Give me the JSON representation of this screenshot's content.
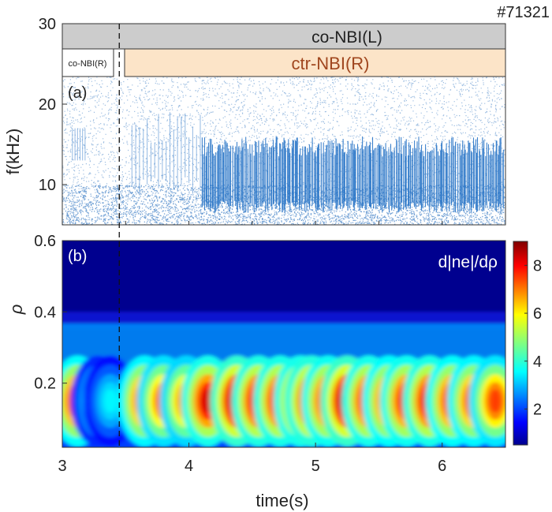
{
  "shot_label": "#71321",
  "chart_data": [
    {
      "type": "spectrogram",
      "panel_label": "(a)",
      "ylabel": "f(kHz)",
      "xlim": [
        3,
        6.5
      ],
      "ylim": [
        5,
        30
      ],
      "yticks": [
        "10",
        "20",
        "30"
      ],
      "grid": false,
      "legend": "none",
      "heating_bars": [
        {
          "label": "co-NBI(L)",
          "t_start": 3.0,
          "t_end": 6.5,
          "color": "#cccccc"
        },
        {
          "label": "co-NBI(R)",
          "t_start": 3.0,
          "t_end": 3.4,
          "color": "#ffffff"
        },
        {
          "label": "ctr-NBI(R)",
          "t_start": 3.5,
          "t_end": 6.5,
          "color": "#fce4c8",
          "text_color": "#a0461e"
        }
      ],
      "marker_time": 3.45,
      "mode_band_khz": [
        8,
        16
      ],
      "mode_onset_time": 4.1
    },
    {
      "type": "heatmap",
      "panel_label": "(b)",
      "quantity_label": "d|ne|/dρ",
      "xlabel": "time(s)",
      "ylabel": "ρ",
      "xlim": [
        3,
        6.5
      ],
      "xticks": [
        "3",
        "4",
        "5",
        "6"
      ],
      "ylim": [
        0.02,
        0.6
      ],
      "yticks": [
        "0.2",
        "0.4",
        "0.6"
      ],
      "colorbar": {
        "range": [
          0.5,
          9
        ],
        "ticks": [
          "2",
          "4",
          "6",
          "8"
        ],
        "colormap": "jet"
      },
      "peak_rho": 0.15,
      "bursts": [
        {
          "t": 3.12,
          "amp": 8.0
        },
        {
          "t": 3.28,
          "amp": 4.0
        },
        {
          "t": 3.38,
          "amp": 3.5
        },
        {
          "t": 3.65,
          "amp": 7.8
        },
        {
          "t": 3.8,
          "amp": 7.4
        },
        {
          "t": 3.98,
          "amp": 7.2
        },
        {
          "t": 4.15,
          "amp": 8.3
        },
        {
          "t": 4.38,
          "amp": 8.9
        },
        {
          "t": 4.55,
          "amp": 8.5
        },
        {
          "t": 4.72,
          "amp": 8.4
        },
        {
          "t": 4.88,
          "amp": 8.3
        },
        {
          "t": 4.97,
          "amp": 8.6
        },
        {
          "t": 5.1,
          "amp": 8.2
        },
        {
          "t": 5.25,
          "amp": 9.0
        },
        {
          "t": 5.42,
          "amp": 8.3
        },
        {
          "t": 5.58,
          "amp": 8.0
        },
        {
          "t": 5.72,
          "amp": 8.2
        },
        {
          "t": 5.9,
          "amp": 8.4
        },
        {
          "t": 6.08,
          "amp": 8.0
        },
        {
          "t": 6.25,
          "amp": 7.8
        },
        {
          "t": 6.42,
          "amp": 7.5
        }
      ]
    }
  ]
}
